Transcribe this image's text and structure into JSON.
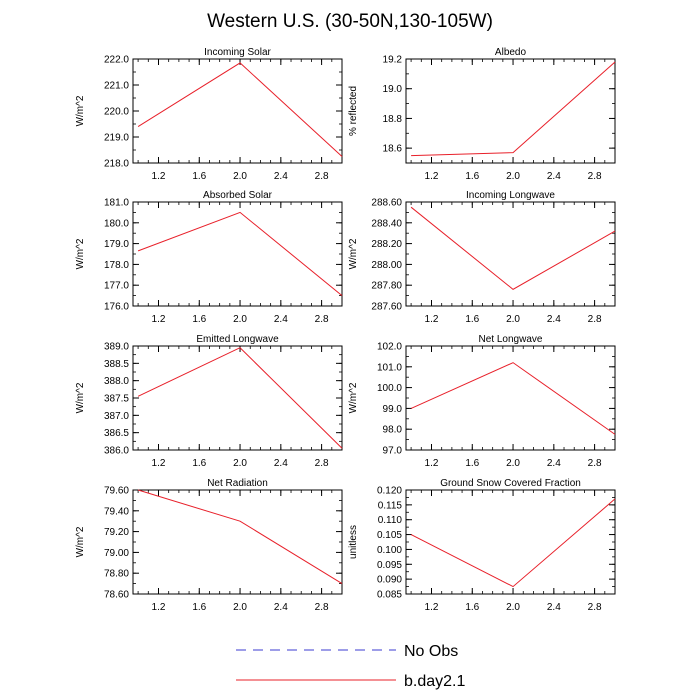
{
  "title": "Western U.S. (30-50N,130-105W)",
  "legend": {
    "no_obs_label": "No Obs",
    "run_label": "b.day2.1",
    "no_obs_color": "#3b3bd0",
    "run_color": "#e8202a"
  },
  "chart_data": [
    {
      "type": "line",
      "title": "Incoming Solar",
      "ylabel": "W/m^2",
      "x": [
        1.0,
        2.0,
        3.0
      ],
      "values": [
        219.4,
        221.85,
        218.25
      ],
      "xlim": [
        0.95,
        3.0
      ],
      "ylim": [
        218.0,
        222.0
      ],
      "yticks": [
        218.0,
        219.0,
        220.0,
        221.0,
        222.0
      ],
      "ytick_labels": [
        "218.0",
        "219.0",
        "220.0",
        "221.0",
        "222.0"
      ],
      "xticks": [
        1.2,
        1.6,
        2.0,
        2.4,
        2.8
      ],
      "xtick_labels": [
        "1.2",
        "1.6",
        "2.0",
        "2.4",
        "2.8"
      ],
      "ytick_step_minor": 0.5
    },
    {
      "type": "line",
      "title": "Albedo",
      "ylabel": "% reflected",
      "x": [
        1.0,
        2.0,
        3.0
      ],
      "values": [
        18.55,
        18.57,
        19.18
      ],
      "xlim": [
        0.95,
        3.0
      ],
      "ylim": [
        18.5,
        19.2
      ],
      "yticks": [
        18.6,
        18.8,
        19.0,
        19.2
      ],
      "ytick_labels": [
        "18.6",
        "18.8",
        "19.0",
        "19.2"
      ],
      "xticks": [
        1.2,
        1.6,
        2.0,
        2.4,
        2.8
      ],
      "xtick_labels": [
        "1.2",
        "1.6",
        "2.0",
        "2.4",
        "2.8"
      ],
      "ytick_step_minor": 0.1
    },
    {
      "type": "line",
      "title": "Absorbed Solar",
      "ylabel": "W/m^2",
      "x": [
        1.0,
        2.0,
        3.0
      ],
      "values": [
        178.65,
        180.5,
        176.5
      ],
      "xlim": [
        0.95,
        3.0
      ],
      "ylim": [
        176.0,
        181.0
      ],
      "yticks": [
        176.0,
        177.0,
        178.0,
        179.0,
        180.0,
        181.0
      ],
      "ytick_labels": [
        "176.0",
        "177.0",
        "178.0",
        "179.0",
        "180.0",
        "181.0"
      ],
      "xticks": [
        1.2,
        1.6,
        2.0,
        2.4,
        2.8
      ],
      "xtick_labels": [
        "1.2",
        "1.6",
        "2.0",
        "2.4",
        "2.8"
      ],
      "ytick_step_minor": 0.5
    },
    {
      "type": "line",
      "title": "Incoming Longwave",
      "ylabel": "W/m^2",
      "x": [
        1.0,
        2.0,
        3.0
      ],
      "values": [
        288.55,
        287.76,
        288.32
      ],
      "xlim": [
        0.95,
        3.0
      ],
      "ylim": [
        287.6,
        288.6
      ],
      "yticks": [
        287.6,
        287.8,
        288.0,
        288.2,
        288.4,
        288.6
      ],
      "ytick_labels": [
        "287.60",
        "287.80",
        "288.00",
        "288.20",
        "288.40",
        "288.60"
      ],
      "xticks": [
        1.2,
        1.6,
        2.0,
        2.4,
        2.8
      ],
      "xtick_labels": [
        "1.2",
        "1.6",
        "2.0",
        "2.4",
        "2.8"
      ],
      "ytick_step_minor": 0.1
    },
    {
      "type": "line",
      "title": "Emitted Longwave",
      "ylabel": "W/m^2",
      "x": [
        1.0,
        2.0,
        3.0
      ],
      "values": [
        387.55,
        388.95,
        386.05
      ],
      "xlim": [
        0.95,
        3.0
      ],
      "ylim": [
        386.0,
        389.0
      ],
      "yticks": [
        386.0,
        386.5,
        387.0,
        387.5,
        388.0,
        388.5,
        389.0
      ],
      "ytick_labels": [
        "386.0",
        "386.5",
        "387.0",
        "387.5",
        "388.0",
        "388.5",
        "389.0"
      ],
      "xticks": [
        1.2,
        1.6,
        2.0,
        2.4,
        2.8
      ],
      "xtick_labels": [
        "1.2",
        "1.6",
        "2.0",
        "2.4",
        "2.8"
      ],
      "ytick_step_minor": 0.25
    },
    {
      "type": "line",
      "title": "Net Longwave",
      "ylabel": "W/m^2",
      "x": [
        1.0,
        2.0,
        3.0
      ],
      "values": [
        99.0,
        101.2,
        97.75
      ],
      "xlim": [
        0.95,
        3.0
      ],
      "ylim": [
        97.0,
        102.0
      ],
      "yticks": [
        97.0,
        98.0,
        99.0,
        100.0,
        101.0,
        102.0
      ],
      "ytick_labels": [
        "97.0",
        "98.0",
        "99.0",
        "100.0",
        "101.0",
        "102.0"
      ],
      "xticks": [
        1.2,
        1.6,
        2.0,
        2.4,
        2.8
      ],
      "xtick_labels": [
        "1.2",
        "1.6",
        "2.0",
        "2.4",
        "2.8"
      ],
      "ytick_step_minor": 0.5
    },
    {
      "type": "line",
      "title": "Net Radiation",
      "ylabel": "W/m^2",
      "x": [
        1.0,
        2.0,
        3.0
      ],
      "values": [
        79.6,
        79.3,
        78.7
      ],
      "xlim": [
        0.95,
        3.0
      ],
      "ylim": [
        78.6,
        79.6
      ],
      "yticks": [
        78.6,
        78.8,
        79.0,
        79.2,
        79.4,
        79.6
      ],
      "ytick_labels": [
        "78.60",
        "78.80",
        "79.00",
        "79.20",
        "79.40",
        "79.60"
      ],
      "xticks": [
        1.2,
        1.6,
        2.0,
        2.4,
        2.8
      ],
      "xtick_labels": [
        "1.2",
        "1.6",
        "2.0",
        "2.4",
        "2.8"
      ],
      "ytick_step_minor": 0.1
    },
    {
      "type": "line",
      "title": "Ground Snow Covered Fraction",
      "ylabel": "unitless",
      "x": [
        1.0,
        2.0,
        3.0
      ],
      "values": [
        0.105,
        0.0875,
        0.117
      ],
      "xlim": [
        0.95,
        3.0
      ],
      "ylim": [
        0.085,
        0.12
      ],
      "yticks": [
        0.085,
        0.09,
        0.095,
        0.1,
        0.105,
        0.11,
        0.115,
        0.12
      ],
      "ytick_labels": [
        "0.085",
        "0.090",
        "0.095",
        "0.100",
        "0.105",
        "0.110",
        "0.115",
        "0.120"
      ],
      "xticks": [
        1.2,
        1.6,
        2.0,
        2.4,
        2.8
      ],
      "xtick_labels": [
        "1.2",
        "1.6",
        "2.0",
        "2.4",
        "2.8"
      ],
      "ytick_step_minor": 0.0025
    }
  ]
}
